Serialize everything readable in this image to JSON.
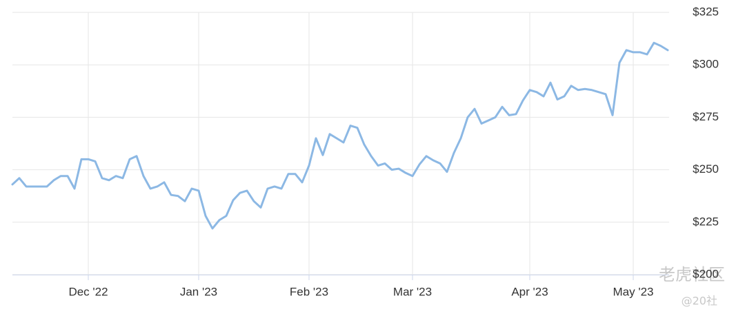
{
  "chart_data": {
    "type": "line",
    "categories": [
      null,
      null,
      null,
      null,
      null,
      null,
      null,
      null,
      null,
      null,
      null,
      "Dec '22",
      null,
      null,
      null,
      null,
      null,
      null,
      null,
      null,
      null,
      null,
      null,
      null,
      null,
      null,
      null,
      "Jan '23",
      null,
      null,
      null,
      null,
      null,
      null,
      null,
      null,
      null,
      null,
      null,
      null,
      null,
      null,
      null,
      "Feb '23",
      null,
      null,
      null,
      null,
      null,
      null,
      null,
      null,
      null,
      null,
      null,
      null,
      null,
      null,
      "Mar '23",
      null,
      null,
      null,
      null,
      null,
      null,
      null,
      null,
      null,
      null,
      null,
      null,
      null,
      null,
      null,
      null,
      "Apr '23",
      null,
      null,
      null,
      null,
      null,
      null,
      null,
      null,
      null,
      null,
      null,
      null,
      null,
      null,
      "May '23",
      null,
      null,
      null,
      null,
      null
    ],
    "values": [
      243,
      246,
      242,
      242,
      242,
      242,
      245,
      247,
      247,
      241,
      255,
      255,
      254,
      246,
      245,
      247,
      246,
      255,
      256.5,
      247,
      241,
      242,
      244,
      238,
      237.5,
      235,
      241,
      240,
      228,
      222,
      226,
      228,
      235.5,
      239,
      240,
      235,
      232,
      241,
      242,
      241,
      248,
      248,
      244,
      252,
      265,
      257,
      267,
      265,
      263,
      271,
      270,
      262,
      256.5,
      252,
      253,
      250,
      250.5,
      248.5,
      247,
      252.5,
      256.5,
      254.5,
      253,
      249,
      258,
      265,
      275,
      279,
      272,
      273.5,
      275,
      280,
      276,
      276.5,
      283,
      288,
      287,
      285,
      291.5,
      283.5,
      285,
      290,
      288,
      288.5,
      288,
      287,
      286,
      276,
      301,
      307,
      306,
      306,
      305,
      310.5,
      309,
      307
    ],
    "color": "#8cb8e4",
    "ylim": [
      200,
      325
    ],
    "yticks": [
      {
        "value": 200,
        "label": "$200"
      },
      {
        "value": 225,
        "label": "$225"
      },
      {
        "value": 250,
        "label": "$250"
      },
      {
        "value": 275,
        "label": "$275"
      },
      {
        "value": 300,
        "label": "$300"
      },
      {
        "value": 325,
        "label": "$325"
      }
    ],
    "grid": true,
    "watermark": [
      "老虎社区",
      "@20社"
    ]
  }
}
